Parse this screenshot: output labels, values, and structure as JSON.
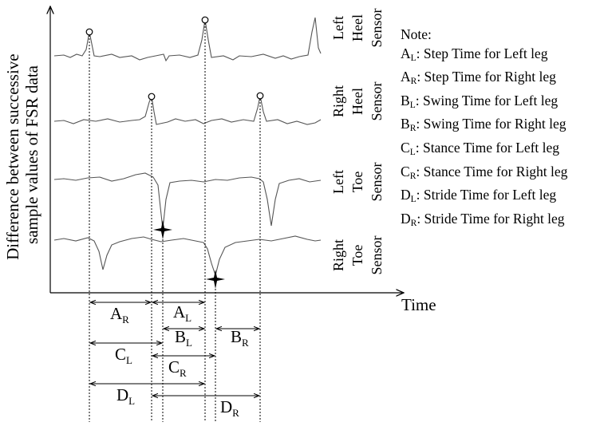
{
  "axes": {
    "y_label_line1": "Difference between successive",
    "y_label_line2": "sample values of FSR data",
    "x_label": "Time"
  },
  "sensors": [
    {
      "word1": "Left",
      "word2": "Heel",
      "word3": "Sensor"
    },
    {
      "word1": "Right",
      "word2": "Heel",
      "word3": "Sensor"
    },
    {
      "word1": "Left",
      "word2": "Toe",
      "word3": "Sensor"
    },
    {
      "word1": "Right",
      "word2": "Toe",
      "word3": "Sensor"
    }
  ],
  "intervals": [
    {
      "letter": "A",
      "sub": "R"
    },
    {
      "letter": "A",
      "sub": "L"
    },
    {
      "letter": "B",
      "sub": "L"
    },
    {
      "letter": "B",
      "sub": "R"
    },
    {
      "letter": "C",
      "sub": "L"
    },
    {
      "letter": "C",
      "sub": "R"
    },
    {
      "letter": "D",
      "sub": "L"
    },
    {
      "letter": "D",
      "sub": "R"
    }
  ],
  "notes": {
    "title": "Note:",
    "items": [
      {
        "letter": "A",
        "sub": "L",
        "text": ": Step Time for Left leg"
      },
      {
        "letter": "A",
        "sub": "R",
        "text": ": Step Time for Right leg"
      },
      {
        "letter": "B",
        "sub": "L",
        "text": ": Swing Time for Left leg"
      },
      {
        "letter": "B",
        "sub": "R",
        "text": ": Swing Time for Right leg"
      },
      {
        "letter": "C",
        "sub": "L",
        "text": ": Stance Time for Left leg"
      },
      {
        "letter": "C",
        "sub": "R",
        "text": ": Stance Time for Right leg"
      },
      {
        "letter": "D",
        "sub": "L",
        "text": ": Stride Time for Left leg"
      },
      {
        "letter": "D",
        "sub": "R",
        "text": ": Stride Time for Right leg"
      }
    ]
  }
}
